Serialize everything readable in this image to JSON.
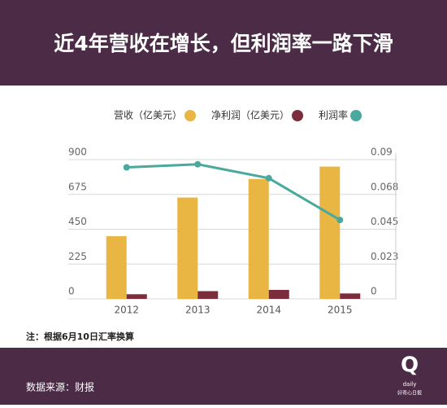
{
  "chart_data": {
    "type": "bar_line",
    "title": "近4年营收在增长，但利润率一路下滑",
    "categories": [
      "2012",
      "2013",
      "2014",
      "2015"
    ],
    "series": [
      {
        "name": "营收（亿美元）",
        "color": "#e9b543",
        "type": "bar",
        "values": [
          405,
          655,
          775,
          855
        ]
      },
      {
        "name": "净利润（亿美元）",
        "color": "#7b2d3b",
        "type": "bar",
        "values": [
          30,
          50,
          58,
          35
        ]
      },
      {
        "name": "利润率",
        "color": "#4aa99d",
        "type": "line",
        "axis": "y2",
        "values": [
          0.085,
          0.087,
          0.078,
          0.051
        ]
      }
    ],
    "ylim": [
      0,
      900
    ],
    "yticks": [
      0,
      225,
      450,
      675,
      900
    ],
    "y2lim": [
      0,
      0.09
    ],
    "y2ticks": [
      0,
      {
        "value": 0.0225,
        "label": "0.023"
      },
      0.045,
      {
        "value": 0.0675,
        "label": "0.068"
      },
      0.09
    ],
    "grid": true,
    "note": "注：根据6月10日汇率换算"
  },
  "footer": {
    "source": "数据来源：财报",
    "logo": "Q",
    "logo_sub": "daily",
    "logo_name": "好奇心日报"
  }
}
